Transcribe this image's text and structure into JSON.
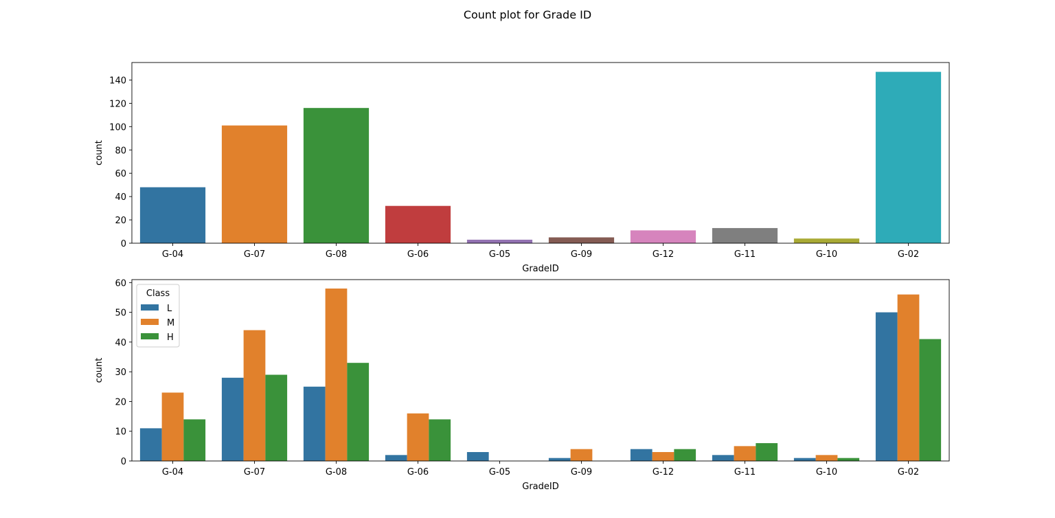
{
  "figure": {
    "title": "Count plot for Grade ID"
  },
  "chart_data": [
    {
      "type": "bar",
      "title": "",
      "xlabel": "GradeID",
      "ylabel": "count",
      "categories": [
        "G-04",
        "G-07",
        "G-08",
        "G-06",
        "G-05",
        "G-09",
        "G-12",
        "G-11",
        "G-10",
        "G-02"
      ],
      "values": [
        48,
        101,
        116,
        32,
        3,
        5,
        11,
        13,
        4,
        147
      ],
      "colors": [
        "#3274a1",
        "#e1812c",
        "#3a923a",
        "#c03d3e",
        "#9372b2",
        "#845b53",
        "#d684bd",
        "#7f7f7f",
        "#a9aa35",
        "#2eabb8"
      ],
      "ylim": [
        0,
        155
      ],
      "yticks": [
        0,
        20,
        40,
        60,
        80,
        100,
        120,
        140
      ],
      "grid": false,
      "legend": null
    },
    {
      "type": "bar",
      "title": "",
      "xlabel": "GradeID",
      "ylabel": "count",
      "categories": [
        "G-04",
        "G-07",
        "G-08",
        "G-06",
        "G-05",
        "G-09",
        "G-12",
        "G-11",
        "G-10",
        "G-02"
      ],
      "series": [
        {
          "name": "L",
          "color": "#3274a1",
          "values": [
            11,
            28,
            25,
            2,
            3,
            1,
            4,
            2,
            1,
            50
          ]
        },
        {
          "name": "M",
          "color": "#e1812c",
          "values": [
            23,
            44,
            58,
            16,
            0,
            4,
            3,
            5,
            2,
            56
          ]
        },
        {
          "name": "H",
          "color": "#3a923a",
          "values": [
            14,
            29,
            33,
            14,
            0,
            0,
            4,
            6,
            1,
            41
          ]
        }
      ],
      "ylim": [
        0,
        61
      ],
      "yticks": [
        0,
        10,
        20,
        30,
        40,
        50,
        60
      ],
      "grid": false,
      "legend": {
        "title": "Class",
        "placement": "upper left"
      }
    }
  ]
}
